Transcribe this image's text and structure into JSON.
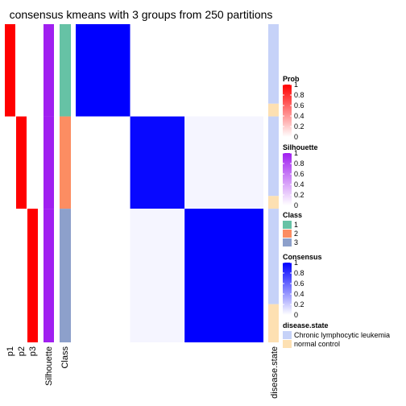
{
  "chart_data": {
    "type": "heatmap",
    "title": "consensus kmeans with 3 groups from 250 partitions",
    "n_samples": 100,
    "groups": [
      {
        "class": "1",
        "count": 29
      },
      {
        "class": "2",
        "count": 29
      },
      {
        "class": "3",
        "count": 42
      }
    ],
    "row_annotations": [
      "p1",
      "p2",
      "p3",
      "Silhouette",
      "Class"
    ],
    "column_annotation": "disease.state",
    "consensus_blocks": [
      [
        1.0,
        0.0,
        0.0
      ],
      [
        0.0,
        0.97,
        0.04
      ],
      [
        0.0,
        0.04,
        1.0
      ]
    ],
    "disease_state_runs": [
      {
        "state": "Chronic lymphocytic leukemia",
        "count": 25
      },
      {
        "state": "normal control",
        "count": 4
      },
      {
        "state": "Chronic lymphocytic leukemia",
        "count": 25
      },
      {
        "state": "normal control",
        "count": 4
      },
      {
        "state": "Chronic lymphocytic leukemia",
        "count": 30
      },
      {
        "state": "normal control",
        "count": 12
      }
    ],
    "silhouette_color": "#a020f0",
    "legends": {
      "prob": {
        "title": "Prob",
        "ticks": [
          "1",
          "0.8",
          "0.6",
          "0.4",
          "0.2",
          "0"
        ]
      },
      "silhouette": {
        "title": "Silhouette",
        "ticks": [
          "1",
          "0.8",
          "0.6",
          "0.4",
          "0.2",
          "0"
        ]
      },
      "class": {
        "title": "Class",
        "items": [
          {
            "label": "1",
            "color": "#66c2a5"
          },
          {
            "label": "2",
            "color": "#fc8d62"
          },
          {
            "label": "3",
            "color": "#8da0cb"
          }
        ]
      },
      "consensus": {
        "title": "Consensus",
        "ticks": [
          "1",
          "0.8",
          "0.6",
          "0.4",
          "0.2",
          "0"
        ]
      },
      "disease_state": {
        "title": "disease.state",
        "items": [
          {
            "label": "Chronic lymphocytic leukemia",
            "color": "#c6d2f8"
          },
          {
            "label": "normal control",
            "color": "#fde0b2"
          }
        ]
      }
    },
    "colors": {
      "prob_high": "#ff0000",
      "silhouette_high": "#a020f0",
      "consensus_high": "#0000ff"
    }
  }
}
